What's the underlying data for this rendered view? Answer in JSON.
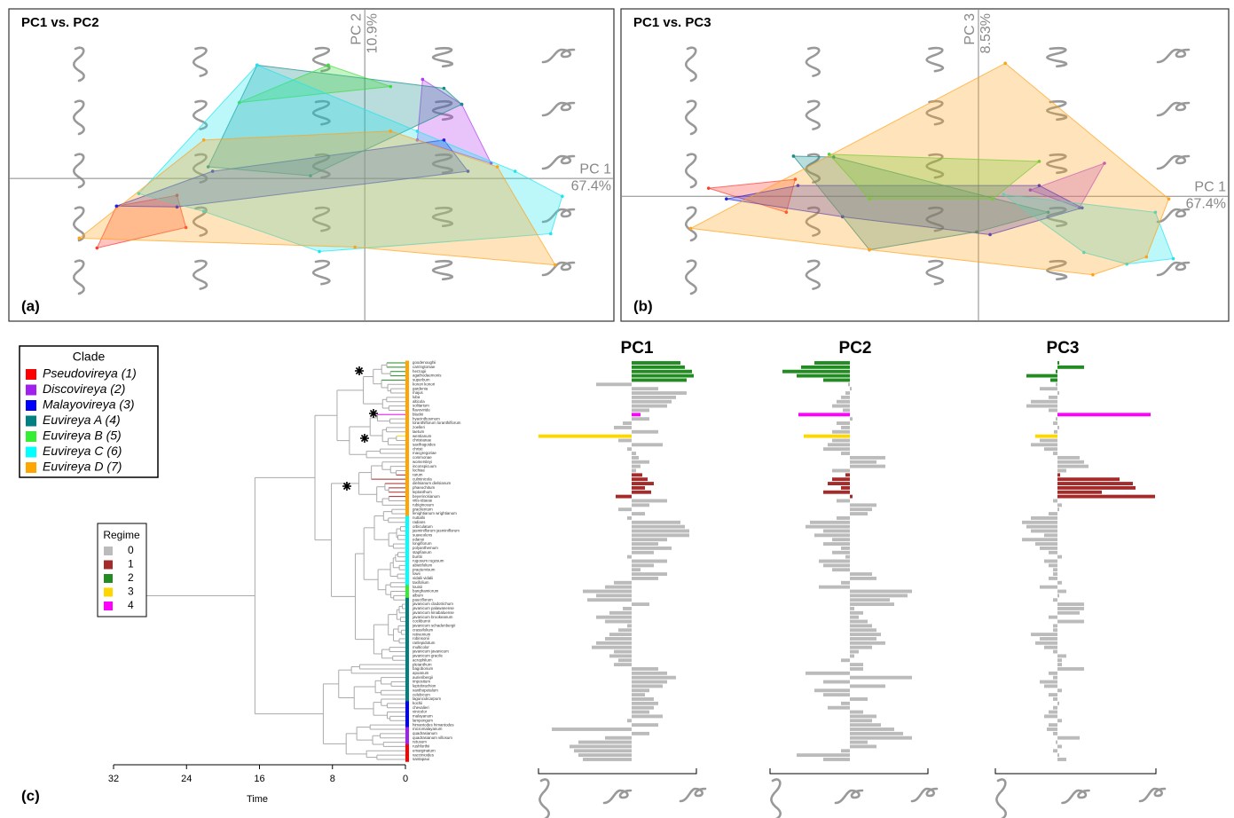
{
  "chart_data": [
    {
      "type": "scatter",
      "title": "PC1 vs. PC2",
      "panel_label": "(a)",
      "x_label": "PC 1",
      "x_variance": "67.4%",
      "y_label": "PC 2",
      "y_variance": "10.9%",
      "xlim": [
        -0.4,
        0.28
      ],
      "ylim": [
        -0.16,
        0.19
      ],
      "series": [
        {
          "color": "#ff3b30",
          "x": [
            -0.301,
            -0.279,
            -0.211,
            -0.201
          ],
          "y": [
            -0.078,
            -0.031,
            -0.019,
            -0.055
          ]
        },
        {
          "color": "#b43cf0",
          "x": [
            0.065,
            0.109,
            0.142,
            0.059
          ],
          "y": [
            0.111,
            0.083,
            0.017,
            0.043
          ]
        },
        {
          "color": "#2020e0",
          "x": [
            -0.279,
            -0.171,
            0.089,
            0.116,
            -0.211
          ],
          "y": [
            -0.031,
            0.008,
            0.043,
            0.008,
            -0.032
          ]
        },
        {
          "color": "#178a8a",
          "x": [
            -0.121,
            0.089,
            0.109,
            -0.061,
            -0.176
          ],
          "y": [
            0.127,
            0.101,
            0.083,
            0.003,
            0.013
          ]
        },
        {
          "color": "#3ddc3d",
          "x": [
            -0.041,
            0.029,
            -0.141
          ],
          "y": [
            0.127,
            0.103,
            0.085
          ]
        },
        {
          "color": "#20e4f0",
          "x": [
            -0.254,
            -0.121,
            0.059,
            0.169,
            0.222,
            0.209,
            -0.051,
            -0.181
          ],
          "y": [
            -0.017,
            0.127,
            0.053,
            0.008,
            -0.02,
            -0.062,
            -0.082,
            -0.037
          ]
        },
        {
          "color": "#ffa21a",
          "x": [
            -0.321,
            -0.181,
            0.029,
            0.149,
            0.214,
            -0.011
          ],
          "y": [
            -0.067,
            0.043,
            0.053,
            0.013,
            -0.097,
            -0.077
          ]
        }
      ]
    },
    {
      "type": "scatter",
      "title": "PC1 vs. PC3",
      "panel_label": "(b)",
      "x_label": "PC 1",
      "x_variance": "67.4%",
      "y_label": "PC 3",
      "y_variance": "8.53%",
      "xlim": [
        -0.4,
        0.28
      ],
      "ylim": [
        -0.14,
        0.21
      ],
      "series": [
        {
          "color": "#ff3b30",
          "x": [
            -0.302,
            -0.205,
            -0.215
          ],
          "y": [
            0.009,
            0.019,
            -0.018
          ]
        },
        {
          "color": "#b43cf0",
          "x": [
            0.058,
            0.141,
            0.113
          ],
          "y": [
            0.007,
            0.037,
            -0.013
          ]
        },
        {
          "color": "#2020e0",
          "x": [
            -0.282,
            -0.202,
            0.068,
            0.116,
            0.013,
            -0.152
          ],
          "y": [
            -0.003,
            0.012,
            0.012,
            -0.013,
            -0.043,
            -0.023
          ]
        },
        {
          "color": "#178a8a",
          "x": [
            -0.207,
            -0.162,
            0.078,
            -0.002,
            -0.122
          ],
          "y": [
            0.045,
            0.044,
            -0.018,
            -0.04,
            -0.06
          ]
        },
        {
          "color": "#3ddc3d",
          "x": [
            -0.167,
            0.068,
            0.016,
            -0.122
          ],
          "y": [
            0.047,
            0.039,
            -0.003,
            -0.003
          ]
        },
        {
          "color": "#20e4f0",
          "x": [
            0.028,
            0.198,
            0.218,
            0.166,
            0.118
          ],
          "y": [
            0.002,
            -0.018,
            -0.07,
            -0.076,
            -0.063
          ]
        },
        {
          "color": "#ffa21a",
          "x": [
            -0.322,
            0.03,
            0.213,
            0.188,
            0.128,
            -0.122
          ],
          "y": [
            -0.036,
            0.149,
            -0.003,
            -0.068,
            -0.088,
            -0.06
          ]
        }
      ]
    },
    {
      "type": "tree",
      "panel_label": "(c)",
      "x_label": "Time",
      "xlim": [
        32,
        0
      ],
      "xticks": [
        32,
        24,
        16,
        8,
        0
      ],
      "clade_legend": {
        "title": "Clade",
        "names": [
          "Pseudovireya (1)",
          "Discovireya (2)",
          "Malayovireya (3)",
          "Euvireya A (4)",
          "Euvireya B (5)",
          "Euvireya C (6)",
          "Euvireya D (7)"
        ],
        "colors": [
          "#ff0000",
          "#a020f0",
          "#0000ff",
          "#008080",
          "#33ee33",
          "#00ffff",
          "#ffa500"
        ]
      },
      "regime_legend": {
        "title": "Regime",
        "labels": [
          "0",
          "1",
          "2",
          "3",
          "4"
        ],
        "colors": [
          "#bbbbbb",
          "#a52a2a",
          "#228b22",
          "#ffd700",
          "#ff00ff"
        ]
      },
      "tips": [
        "goodenoughii",
        "carringtoniae",
        "herzogii",
        "agathodaemonis",
        "superbum",
        "konori konori",
        "gardenia",
        "majus",
        "luba",
        "alticola",
        "solitarium",
        "flavoviride",
        "blackii",
        "hyacinthosmum",
        "loranthiflorum loranthiflorum",
        "zoelleri",
        "laetum",
        "wentianum",
        "christianae",
        "saxifragoides",
        "christi",
        "macgregoriae",
        "commonae",
        "womersleyi",
        "inconspicuum",
        "lochiae",
        "rarum",
        "culminicola",
        "dielsianum dielsianum",
        "phaeochitum",
        "leptanthum",
        "beyerinckianum",
        "vitis-idaeae",
        "rubiginosum",
        "gracilentum",
        "lenightianum wrightianum",
        "nuttallii",
        "radians",
        "orbiculatum",
        "jasminiflorum jasminiflorum",
        "suaveolens",
        "edanoi",
        "longiflorum",
        "polyanthemum",
        "stapfianum",
        "burttii",
        "rugosum rugosum",
        "abietifolium",
        "praetervisum",
        "lowii",
        "vidalii vidalii",
        "taxifolium",
        "louisii",
        "banghamiorum",
        "album",
        "pauciflorum",
        "javanicum cladotrichum",
        "javanicum palawanense",
        "javanicum kinabaluense",
        "javanicum brookeanum",
        "cockburnii",
        "javanicum schadenbergii",
        "crassifolium",
        "retivenium",
        "robinsonii",
        "rarilepidotum",
        "multicolor",
        "javanicum javanicum",
        "javanicum gracile",
        "acrophilum",
        "pleianthum",
        "bagobonum",
        "apoanum",
        "aurieribergii",
        "impositum",
        "leptobrachion",
        "xanthopetalum",
        "celebicum",
        "lagunculicarpum",
        "kochii",
        "chevalieri",
        "vinicolor",
        "malayanum",
        "lampongum",
        "himantodes himantodes",
        "micromalayanum",
        "quadrasianum",
        "quadrasianum villosum",
        "retusum",
        "rushforthii",
        "emarginatum",
        "vaccinioides",
        "santapaui"
      ],
      "clade": [
        6,
        6,
        6,
        6,
        6,
        6,
        6,
        6,
        6,
        6,
        6,
        6,
        6,
        6,
        6,
        6,
        6,
        6,
        6,
        6,
        6,
        6,
        6,
        6,
        6,
        6,
        6,
        6,
        6,
        6,
        6,
        6,
        6,
        6,
        6,
        6,
        5,
        5,
        5,
        5,
        5,
        5,
        5,
        5,
        5,
        5,
        5,
        5,
        5,
        5,
        5,
        5,
        4,
        4,
        4,
        3,
        3,
        3,
        3,
        3,
        3,
        3,
        3,
        3,
        3,
        3,
        3,
        3,
        3,
        3,
        3,
        3,
        3,
        3,
        3,
        3,
        3,
        3,
        3,
        2,
        2,
        2,
        2,
        2,
        2,
        1,
        1,
        1,
        1,
        0,
        0,
        0,
        0
      ],
      "regime": [
        2,
        2,
        2,
        2,
        2,
        0,
        0,
        0,
        0,
        0,
        0,
        0,
        4,
        0,
        0,
        0,
        0,
        3,
        0,
        0,
        0,
        0,
        0,
        0,
        0,
        0,
        1,
        1,
        1,
        1,
        1,
        1,
        0,
        0,
        0,
        0,
        0,
        0,
        0,
        0,
        0,
        0,
        0,
        0,
        0,
        0,
        0,
        0,
        0,
        0,
        0,
        0,
        0,
        0,
        0,
        0,
        0,
        0,
        0,
        0,
        0,
        0,
        0,
        0,
        0,
        0,
        0,
        0,
        0,
        0,
        0,
        0,
        0,
        0,
        0,
        0,
        0,
        0,
        0,
        0,
        0,
        0,
        0,
        0,
        0,
        0,
        0,
        0,
        0,
        0,
        0,
        0,
        0
      ]
    },
    {
      "type": "bar",
      "title": "PC1",
      "xlim": [
        -0.105,
        0.073
      ],
      "values": [
        0.055,
        0.06,
        0.068,
        0.07,
        0.062,
        -0.04,
        0.03,
        0.062,
        0.05,
        0.045,
        0.04,
        0.02,
        0.01,
        0.02,
        -0.01,
        -0.02,
        0.03,
        -0.105,
        -0.015,
        0.035,
        -0.005,
        0.005,
        0.008,
        0.02,
        0.01,
        0.005,
        0.012,
        0.018,
        0.025,
        0.015,
        0.022,
        -0.018,
        0.04,
        0.02,
        -0.015,
        0.015,
        -0.005,
        0.055,
        0.06,
        0.065,
        0.065,
        0.04,
        0.03,
        0.045,
        0.025,
        -0.005,
        0.04,
        0.025,
        0.01,
        0.04,
        0.03,
        -0.02,
        -0.03,
        -0.055,
        -0.04,
        -0.05,
        0.02,
        -0.01,
        -0.025,
        -0.04,
        -0.03,
        -0.005,
        -0.015,
        -0.025,
        -0.03,
        -0.04,
        -0.045,
        -0.02,
        -0.025,
        -0.015,
        -0.02,
        0.03,
        0.04,
        0.05,
        0.04,
        0.035,
        0.02,
        0.015,
        0.025,
        0.03,
        0.025,
        0.02,
        0.035,
        -0.005,
        0.03,
        -0.09,
        0.02,
        -0.03,
        -0.06,
        -0.07,
        -0.065,
        -0.06,
        -0.055
      ]
    },
    {
      "type": "bar",
      "title": "PC2",
      "xlim": [
        -0.09,
        0.088
      ],
      "values": [
        -0.04,
        -0.055,
        -0.076,
        -0.06,
        -0.03,
        -0.002,
        0.002,
        -0.005,
        -0.01,
        -0.015,
        -0.02,
        -0.008,
        -0.058,
        0.003,
        -0.015,
        -0.01,
        -0.02,
        -0.052,
        -0.02,
        -0.025,
        -0.03,
        -0.01,
        0.04,
        0.03,
        0.04,
        -0.02,
        -0.005,
        -0.02,
        -0.025,
        -0.01,
        -0.03,
        0.003,
        -0.015,
        0.03,
        0.025,
        0.02,
        -0.015,
        -0.045,
        -0.05,
        -0.03,
        -0.04,
        -0.02,
        -0.03,
        -0.01,
        -0.02,
        -0.005,
        -0.035,
        -0.03,
        -0.02,
        0.025,
        0.03,
        -0.01,
        -0.035,
        0.07,
        0.065,
        0.045,
        0.05,
        0.005,
        0.015,
        0.01,
        0.02,
        0.025,
        0.03,
        0.035,
        0.03,
        0.04,
        0.025,
        0.01,
        0.005,
        -0.01,
        0.015,
        0.015,
        -0.05,
        0.07,
        -0.03,
        0.04,
        -0.04,
        -0.03,
        0.02,
        -0.01,
        -0.025,
        0.015,
        0.03,
        0.025,
        0.035,
        0.05,
        0.06,
        0.07,
        0.02,
        0.03,
        -0.01,
        -0.06,
        -0.03
      ]
    },
    {
      "type": "bar",
      "title": "PC3",
      "xlim": [
        -0.07,
        0.111
      ],
      "values": [
        0.002,
        0.03,
        -0.002,
        -0.035,
        -0.008,
        -0.002,
        -0.02,
        0.002,
        -0.01,
        -0.03,
        -0.035,
        -0.01,
        0.105,
        -0.002,
        -0.005,
        0.002,
        -0.004,
        -0.025,
        -0.02,
        -0.03,
        -0.015,
        -0.005,
        0.025,
        0.03,
        0.035,
        0.01,
        0.003,
        0.07,
        0.085,
        0.088,
        0.05,
        0.11,
        -0.005,
        0.005,
        0.002,
        -0.01,
        -0.03,
        -0.04,
        -0.035,
        -0.03,
        -0.015,
        -0.04,
        -0.025,
        -0.02,
        -0.01,
        0.005,
        -0.015,
        -0.01,
        -0.005,
        -0.005,
        -0.01,
        0.005,
        -0.02,
        0.01,
        0.002,
        -0.005,
        0.03,
        0.03,
        0.025,
        -0.01,
        0.03,
        -0.005,
        -0.005,
        -0.03,
        -0.02,
        -0.025,
        -0.015,
        -0.005,
        0.01,
        0.005,
        0.005,
        0.03,
        -0.01,
        -0.005,
        -0.02,
        -0.015,
        0.005,
        -0.01,
        -0.005,
        0.002,
        -0.005,
        -0.01,
        -0.015,
        0.005,
        -0.01,
        -0.012,
        -0.005,
        0.025,
        -0.002,
        0.005,
        -0.005,
        0.002,
        0.01
      ]
    }
  ]
}
